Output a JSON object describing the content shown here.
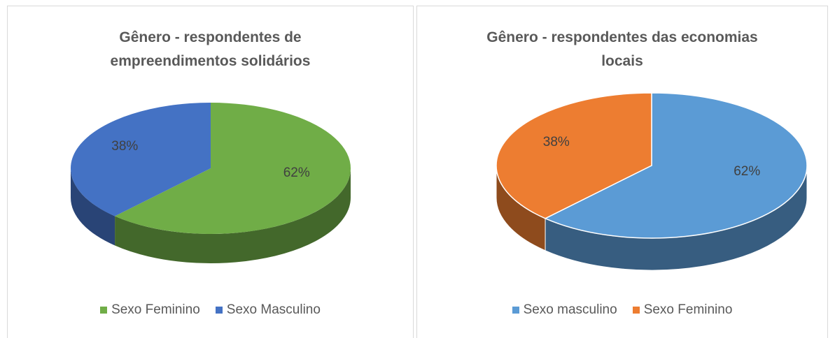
{
  "chart_data": [
    {
      "type": "pie",
      "title": "Gênero - respondentes de empreendimentos solidários",
      "categories": [
        "Sexo Feminino",
        "Sexo Masculino"
      ],
      "values": [
        62,
        38
      ],
      "value_labels": [
        "62%",
        "38%"
      ],
      "colors": [
        "#70ad47",
        "#4472c4"
      ],
      "legend": "bottom"
    },
    {
      "type": "pie",
      "title": "Gênero - respondentes das economias locais",
      "categories": [
        "Sexo masculino",
        "Sexo Feminino"
      ],
      "values": [
        62,
        38
      ],
      "value_labels": [
        "62%",
        "38%"
      ],
      "colors": [
        "#5b9bd5",
        "#ed7d31"
      ],
      "legend": "bottom"
    }
  ]
}
